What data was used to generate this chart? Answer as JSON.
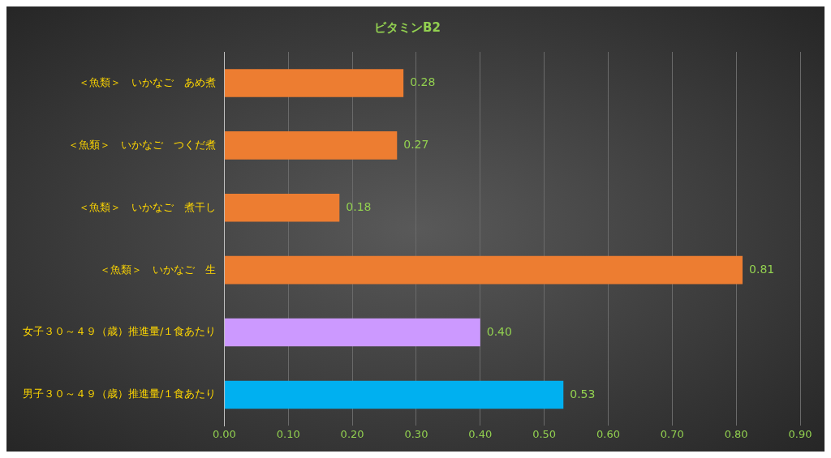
{
  "chart_data": {
    "type": "bar",
    "orientation": "horizontal",
    "title": "ビタミンB2",
    "categories": [
      "＜魚類＞　いかなご　あめ煮",
      "＜魚類＞　いかなご　つくだ煮",
      "＜魚類＞　いかなご　煮干し",
      "＜魚類＞　いかなご　生",
      "女子３０～４９（歳）推進量/１食あたり",
      "男子３０～４９（歳）推進量/１食あたり"
    ],
    "values": [
      0.28,
      0.27,
      0.18,
      0.81,
      0.4,
      0.53
    ],
    "colors": [
      "#ed7d31",
      "#ed7d31",
      "#ed7d31",
      "#ed7d31",
      "#cc99ff",
      "#00b0f0"
    ],
    "value_labels": [
      "0.28",
      "0.27",
      "0.18",
      "0.81",
      "0.40",
      "0.53"
    ],
    "xlim": [
      0,
      0.9
    ],
    "xticks": [
      {
        "value": 0,
        "label": "0.00"
      },
      {
        "value": 0.1,
        "label": "0.10"
      },
      {
        "value": 0.2,
        "label": "0.20"
      },
      {
        "value": 0.3,
        "label": "0.30"
      },
      {
        "value": 0.4,
        "label": "0.40"
      },
      {
        "value": 0.5,
        "label": "0.50"
      },
      {
        "value": 0.6,
        "label": "0.60"
      },
      {
        "value": 0.7,
        "label": "0.70"
      },
      {
        "value": 0.8,
        "label": "0.80"
      },
      {
        "value": 0.9,
        "label": "0.90"
      }
    ],
    "grid": "x",
    "legend": false
  }
}
